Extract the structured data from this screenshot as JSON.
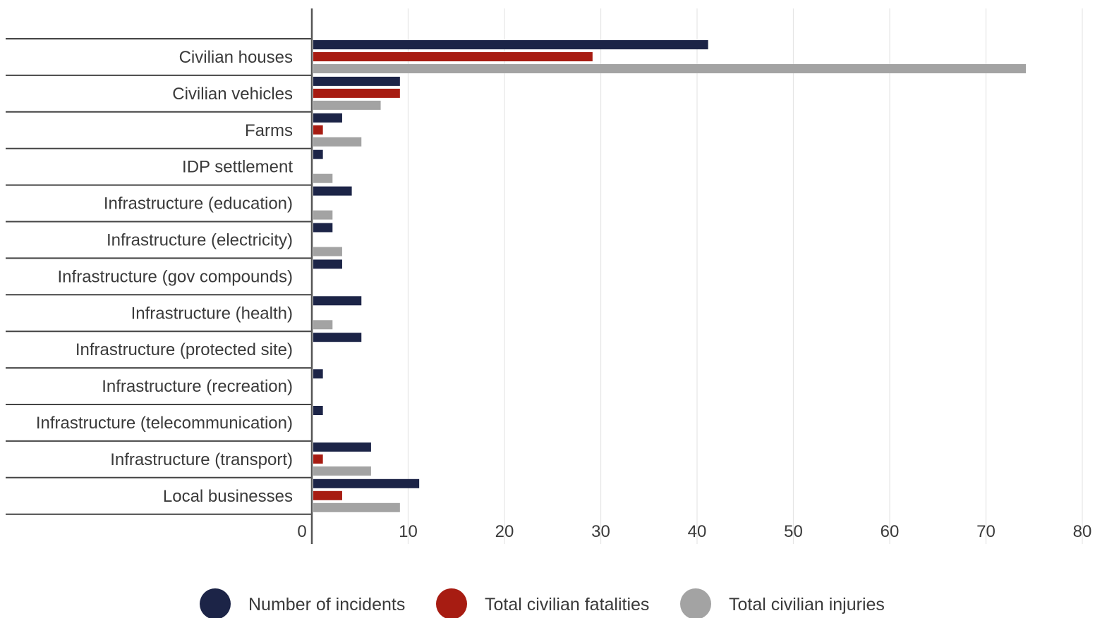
{
  "chart_data": {
    "type": "bar",
    "orientation": "horizontal",
    "title": "",
    "xlabel": "",
    "ylabel": "",
    "xlim": [
      0,
      80
    ],
    "x_ticks": [
      0,
      10,
      20,
      30,
      40,
      50,
      60,
      70,
      80
    ],
    "grid": true,
    "legend_position": "bottom",
    "categories": [
      "Civilian houses",
      "Civilian vehicles",
      "Farms",
      "IDP settlement",
      "Infrastructure (education)",
      "Infrastructure (electricity)",
      "Infrastructure (gov compounds)",
      "Infrastructure (health)",
      "Infrastructure (protected site)",
      "Infrastructure (recreation)",
      "Infrastructure (telecommunication)",
      "Infrastructure (transport)",
      "Local businesses"
    ],
    "series": [
      {
        "name": "Number of incidents",
        "color": "#1c2447",
        "values": [
          41,
          9,
          3,
          1,
          4,
          2,
          3,
          5,
          5,
          1,
          1,
          6,
          11
        ]
      },
      {
        "name": "Total civilian fatalities",
        "color": "#a71c12",
        "values": [
          29,
          9,
          1,
          0,
          0,
          0,
          0,
          0,
          0,
          0,
          0,
          1,
          3
        ]
      },
      {
        "name": "Total civilian injuries",
        "color": "#a3a3a3",
        "values": [
          74,
          7,
          5,
          2,
          2,
          3,
          0,
          2,
          0,
          0,
          0,
          6,
          9
        ]
      }
    ]
  }
}
